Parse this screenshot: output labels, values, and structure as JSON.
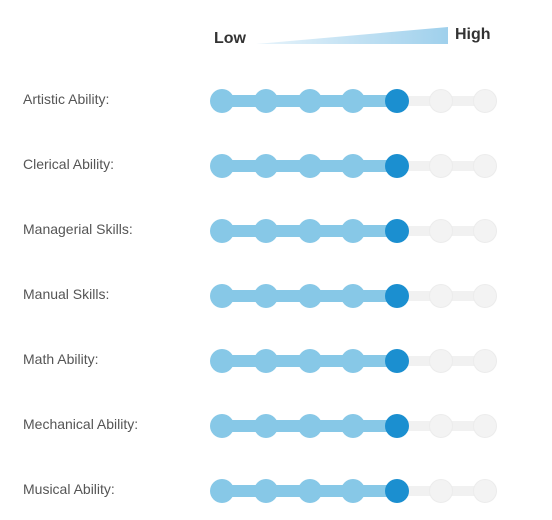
{
  "scale": {
    "low_label": "Low",
    "high_label": "High",
    "levels": 7
  },
  "colors": {
    "filled": "#87c8e7",
    "current": "#1b8fd0",
    "empty": "#f3f3f3"
  },
  "abilities": [
    {
      "label": "Artistic Ability:",
      "level": 5
    },
    {
      "label": "Clerical Ability:",
      "level": 5
    },
    {
      "label": "Managerial Skills:",
      "level": 5
    },
    {
      "label": "Manual Skills:",
      "level": 5
    },
    {
      "label": "Math Ability:",
      "level": 5
    },
    {
      "label": "Mechanical Ability:",
      "level": 5
    },
    {
      "label": "Musical Ability:",
      "level": 5
    }
  ]
}
